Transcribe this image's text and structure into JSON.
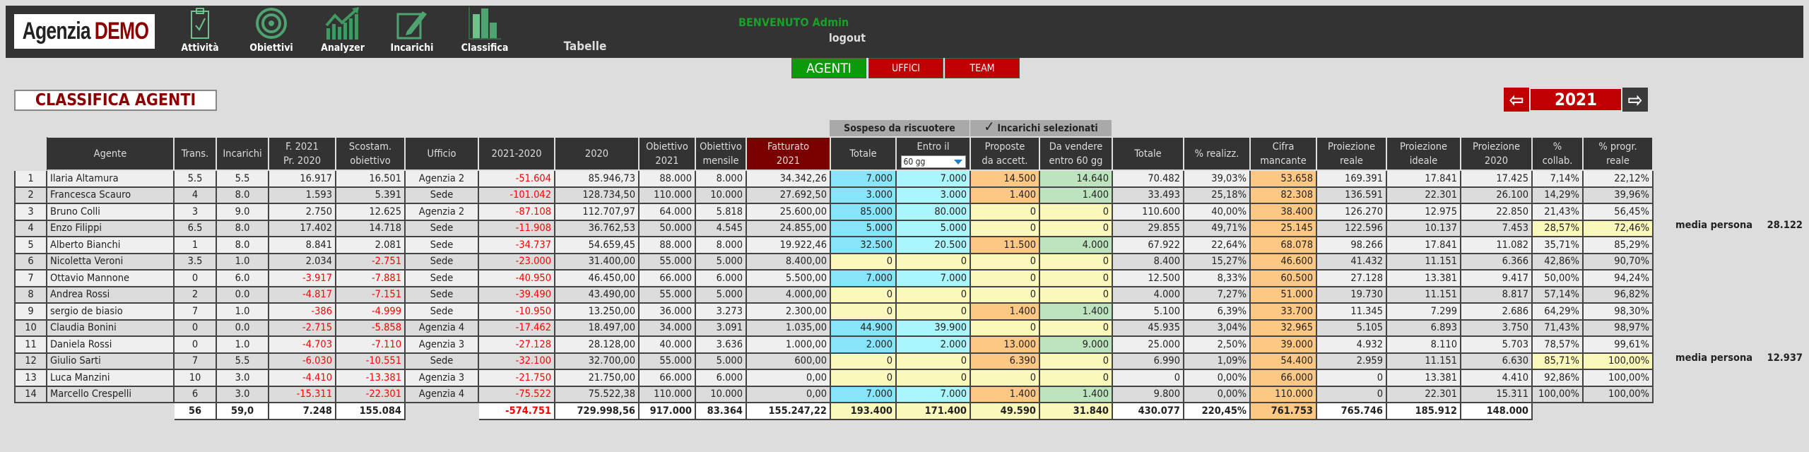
{
  "logo": {
    "part1": "Agenzia",
    "part2": "DEMO"
  },
  "nav": [
    {
      "label": "Attività",
      "icon": "clipboard-check-icon"
    },
    {
      "label": "Obiettivi",
      "icon": "target-icon"
    },
    {
      "label": "Analyzer",
      "icon": "chart-growth-icon"
    },
    {
      "label": "Incarichi",
      "icon": "edit-pencil-icon"
    },
    {
      "label": "Classifica",
      "icon": "bar-chart-icon"
    }
  ],
  "tabelle": "Tabelle",
  "welcome": "BENVENUTO Admin",
  "logout": "logout",
  "tabs": [
    "AGENTI",
    "UFFICI",
    "TEAM"
  ],
  "page_title": "CLASSIFICA AGENTI",
  "year": "2021",
  "year_prev_icon": "arrow-left-icon",
  "year_next_icon": "arrow-right-icon",
  "groups": {
    "sospeso": "Sospeso da riscuotere",
    "incarichi_check": "✓",
    "incarichi": "Incarichi selezionati"
  },
  "colors": {
    "accent_green": "#0a9a0a",
    "accent_red": "#c00000",
    "fatturato_header": "#7a0000",
    "negative": "#ff0000"
  },
  "table": {
    "headers": [
      "",
      "Agente",
      "Trans.",
      "Incarichi",
      "F. 2021\nPr. 2020",
      "Scostam.\nobiettivo",
      "Ufficio",
      "2021-2020",
      "2020",
      "Obiettivo\n2021",
      "Obiettivo\nmensile",
      "Fatturato\n2021",
      "Totale",
      "Entro il",
      "Proposte\nda accett.",
      "Da vendere\nentro 60 gg",
      "Totale",
      "% realizz.",
      "Cifra\nmancante",
      "Proiezione\nreale",
      "Proiezione\nideale",
      "Proiezione\n2020",
      "%\ncollab.",
      "% progr.\nreale"
    ],
    "entro_select": "60 gg",
    "rows": [
      [
        "1",
        "Ilaria Altamura",
        "5.5",
        "5.5",
        "16.917",
        "16.501",
        "Agenzia 2",
        "-51.604",
        "85.946,73",
        "88.000",
        "8.000",
        "34.342,26",
        "7.000",
        "7.000",
        "14.500",
        "14.640",
        "70.482",
        "39,03%",
        "53.658",
        "169.391",
        "17.841",
        "17.425",
        "7,14%",
        "22,12%"
      ],
      [
        "2",
        "Francesca Scauro",
        "4",
        "8.0",
        "1.593",
        "5.391",
        "Sede",
        "-101.042",
        "128.734,50",
        "110.000",
        "10.000",
        "27.692,50",
        "3.000",
        "3.000",
        "1.400",
        "1.400",
        "33.493",
        "25,18%",
        "82.308",
        "136.591",
        "22.301",
        "26.100",
        "14,29%",
        "39,96%"
      ],
      [
        "3",
        "Bruno Colli",
        "3",
        "9.0",
        "2.750",
        "12.625",
        "Agenzia 2",
        "-87.108",
        "112.707,97",
        "64.000",
        "5.818",
        "25.600,00",
        "85.000",
        "80.000",
        "0",
        "0",
        "110.600",
        "40,00%",
        "38.400",
        "126.270",
        "12.975",
        "22.850",
        "21,43%",
        "56,45%"
      ],
      [
        "4",
        "Enzo Filippi",
        "6.5",
        "8.0",
        "17.402",
        "14.718",
        "Sede",
        "-11.908",
        "36.762,53",
        "50.000",
        "4.545",
        "24.855,00",
        "5.000",
        "5.000",
        "0",
        "0",
        "29.855",
        "49,71%",
        "25.145",
        "122.596",
        "10.137",
        "7.453",
        "28,57%",
        "72,46%"
      ],
      [
        "5",
        "Alberto Bianchi",
        "1",
        "8.0",
        "8.841",
        "2.081",
        "Sede",
        "-34.737",
        "54.659,45",
        "88.000",
        "8.000",
        "19.922,46",
        "32.500",
        "20.500",
        "11.500",
        "4.000",
        "67.922",
        "22,64%",
        "68.078",
        "98.266",
        "17.841",
        "11.082",
        "35,71%",
        "85,29%"
      ],
      [
        "6",
        "Nicoletta Veroni",
        "3.5",
        "1.0",
        "2.034",
        "-2.751",
        "Sede",
        "-23.000",
        "31.400,00",
        "55.000",
        "5.000",
        "8.400,00",
        "0",
        "0",
        "0",
        "0",
        "8.400",
        "15,27%",
        "46.600",
        "41.432",
        "11.151",
        "6.366",
        "42,86%",
        "90,70%"
      ],
      [
        "7",
        "Ottavio Mannone",
        "0",
        "6.0",
        "-3.917",
        "-7.881",
        "Sede",
        "-40.950",
        "46.450,00",
        "66.000",
        "6.000",
        "5.500,00",
        "7.000",
        "7.000",
        "0",
        "0",
        "12.500",
        "8,33%",
        "60.500",
        "27.128",
        "13.381",
        "9.417",
        "50,00%",
        "94,24%"
      ],
      [
        "8",
        "Andrea Rossi",
        "2",
        "0.0",
        "-4.817",
        "-7.151",
        "Sede",
        "-39.490",
        "43.490,00",
        "55.000",
        "5.000",
        "4.000,00",
        "0",
        "0",
        "0",
        "0",
        "4.000",
        "7,27%",
        "51.000",
        "19.730",
        "11.151",
        "8.817",
        "57,14%",
        "96,82%"
      ],
      [
        "9",
        "sergio de biasio",
        "7",
        "1.0",
        "-386",
        "-4.999",
        "Sede",
        "-10.950",
        "13.250,00",
        "36.000",
        "3.273",
        "2.300,00",
        "0",
        "0",
        "1.400",
        "1.400",
        "5.100",
        "6,39%",
        "33.700",
        "11.345",
        "7.299",
        "2.686",
        "64,29%",
        "98,30%"
      ],
      [
        "10",
        "Claudia Bonini",
        "0",
        "0.0",
        "-2.715",
        "-5.858",
        "Agenzia 4",
        "-17.462",
        "18.497,00",
        "34.000",
        "3.091",
        "1.035,00",
        "44.900",
        "39.900",
        "0",
        "0",
        "45.935",
        "3,04%",
        "32.965",
        "5.105",
        "6.893",
        "3.750",
        "71,43%",
        "98,97%"
      ],
      [
        "11",
        "Daniela Rossi",
        "0",
        "1.0",
        "-4.703",
        "-7.110",
        "Agenzia 3",
        "-27.128",
        "28.128,00",
        "40.000",
        "3.636",
        "1.000,00",
        "2.000",
        "2.000",
        "13.000",
        "9.000",
        "25.000",
        "2,50%",
        "39.000",
        "4.932",
        "8.110",
        "5.703",
        "78,57%",
        "99,61%"
      ],
      [
        "12",
        "Giulio Sarti",
        "7",
        "5.5",
        "-6.030",
        "-10.551",
        "Sede",
        "-32.100",
        "32.700,00",
        "55.000",
        "5.000",
        "600,00",
        "0",
        "0",
        "6.390",
        "0",
        "6.990",
        "1,09%",
        "54.400",
        "2.959",
        "11.151",
        "6.630",
        "85,71%",
        "100,00%"
      ],
      [
        "13",
        "Luca Manzini",
        "10",
        "3.0",
        "-4.410",
        "-13.381",
        "Agenzia 3",
        "-21.750",
        "21.750,00",
        "66.000",
        "6.000",
        "0,00",
        "0",
        "0",
        "0",
        "0",
        "0",
        "0,00%",
        "66.000",
        "0",
        "13.381",
        "4.410",
        "92,86%",
        "100,00%"
      ],
      [
        "14",
        "Marcello Crespelli",
        "6",
        "3.0",
        "-15.311",
        "-22.301",
        "Agenzia 4",
        "-75.522",
        "75.522,38",
        "110.000",
        "10.000",
        "0,00",
        "7.000",
        "7.000",
        "1.400",
        "1.400",
        "9.800",
        "0,00%",
        "110.000",
        "0",
        "22.301",
        "15.311",
        "100,00%",
        "100,00%"
      ]
    ],
    "highlight_rows": [
      3,
      11
    ],
    "totals": [
      "",
      "",
      "56",
      "59,0",
      "7.248",
      "155.084",
      "",
      "-574.751",
      "729.998,56",
      "917.000",
      "83.364",
      "155.247,22",
      "193.400",
      "171.400",
      "49.590",
      "31.840",
      "430.077",
      "220,45%",
      "761.753",
      "765.746",
      "185.912",
      "148.000",
      "",
      ""
    ]
  },
  "media_persona": [
    {
      "row": 3,
      "label": "media persona",
      "value": "28.122"
    },
    {
      "row": 11,
      "label": "media persona",
      "value": "12.937"
    }
  ]
}
